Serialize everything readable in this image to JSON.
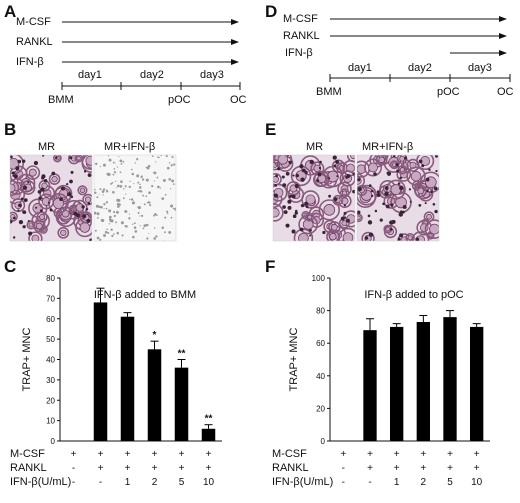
{
  "panels": {
    "A": "A",
    "B": "B",
    "C": "C",
    "D": "D",
    "E": "E",
    "F": "F"
  },
  "timeline_labels": {
    "mcsf": "M-CSF",
    "rankl": "RANKL",
    "ifn": "IFN-β",
    "day1": "day1",
    "day2": "day2",
    "day3": "day3",
    "bmm": "BMM",
    "poc": "pOC",
    "oc": "OC"
  },
  "images": {
    "mr": "MR",
    "mr_ifn": "MR+IFN-β"
  },
  "row_labels": {
    "mcsf": "M-CSF",
    "rankl": "RANKL",
    "ifn": "IFN-β(U/mL)"
  },
  "chart_data": [
    {
      "type": "bar",
      "panel": "C",
      "annotation": "IFN-β added to BMM",
      "ylabel": "TRAP+ MNC",
      "ylim": [
        0,
        80
      ],
      "yticks": [
        0,
        10,
        20,
        30,
        40,
        50,
        60,
        70,
        80
      ],
      "categories": [
        "-",
        "-",
        "1",
        "2",
        "5",
        "10"
      ],
      "values": [
        0,
        68,
        61,
        45,
        36,
        6
      ],
      "errors": [
        0,
        7,
        2,
        4,
        4,
        2
      ],
      "significance": [
        "",
        "",
        "",
        "*",
        "**",
        "**"
      ],
      "row_mcsf": [
        "+",
        "+",
        "+",
        "+",
        "+",
        "+"
      ],
      "row_rankl": [
        "-",
        "+",
        "+",
        "+",
        "+",
        "+"
      ],
      "row_ifn": [
        "-",
        "-",
        "1",
        "2",
        "5",
        "10"
      ]
    },
    {
      "type": "bar",
      "panel": "F",
      "annotation": "IFN-β  added to pOC",
      "ylabel": "TRAP+ MNC",
      "ylim": [
        0,
        100
      ],
      "yticks": [
        0,
        20,
        40,
        60,
        80,
        100
      ],
      "categories": [
        "-",
        "-",
        "1",
        "2",
        "5",
        "10"
      ],
      "values": [
        0,
        68,
        70,
        73,
        76,
        70
      ],
      "errors": [
        0,
        7,
        2,
        4,
        4,
        2
      ],
      "significance": [
        "",
        "",
        "",
        "",
        "",
        ""
      ],
      "row_mcsf": [
        "+",
        "+",
        "+",
        "+",
        "+",
        "+"
      ],
      "row_rankl": [
        "-",
        "+",
        "+",
        "+",
        "+",
        "+"
      ],
      "row_ifn": [
        "-",
        "-",
        "1",
        "2",
        "5",
        "10"
      ]
    }
  ]
}
